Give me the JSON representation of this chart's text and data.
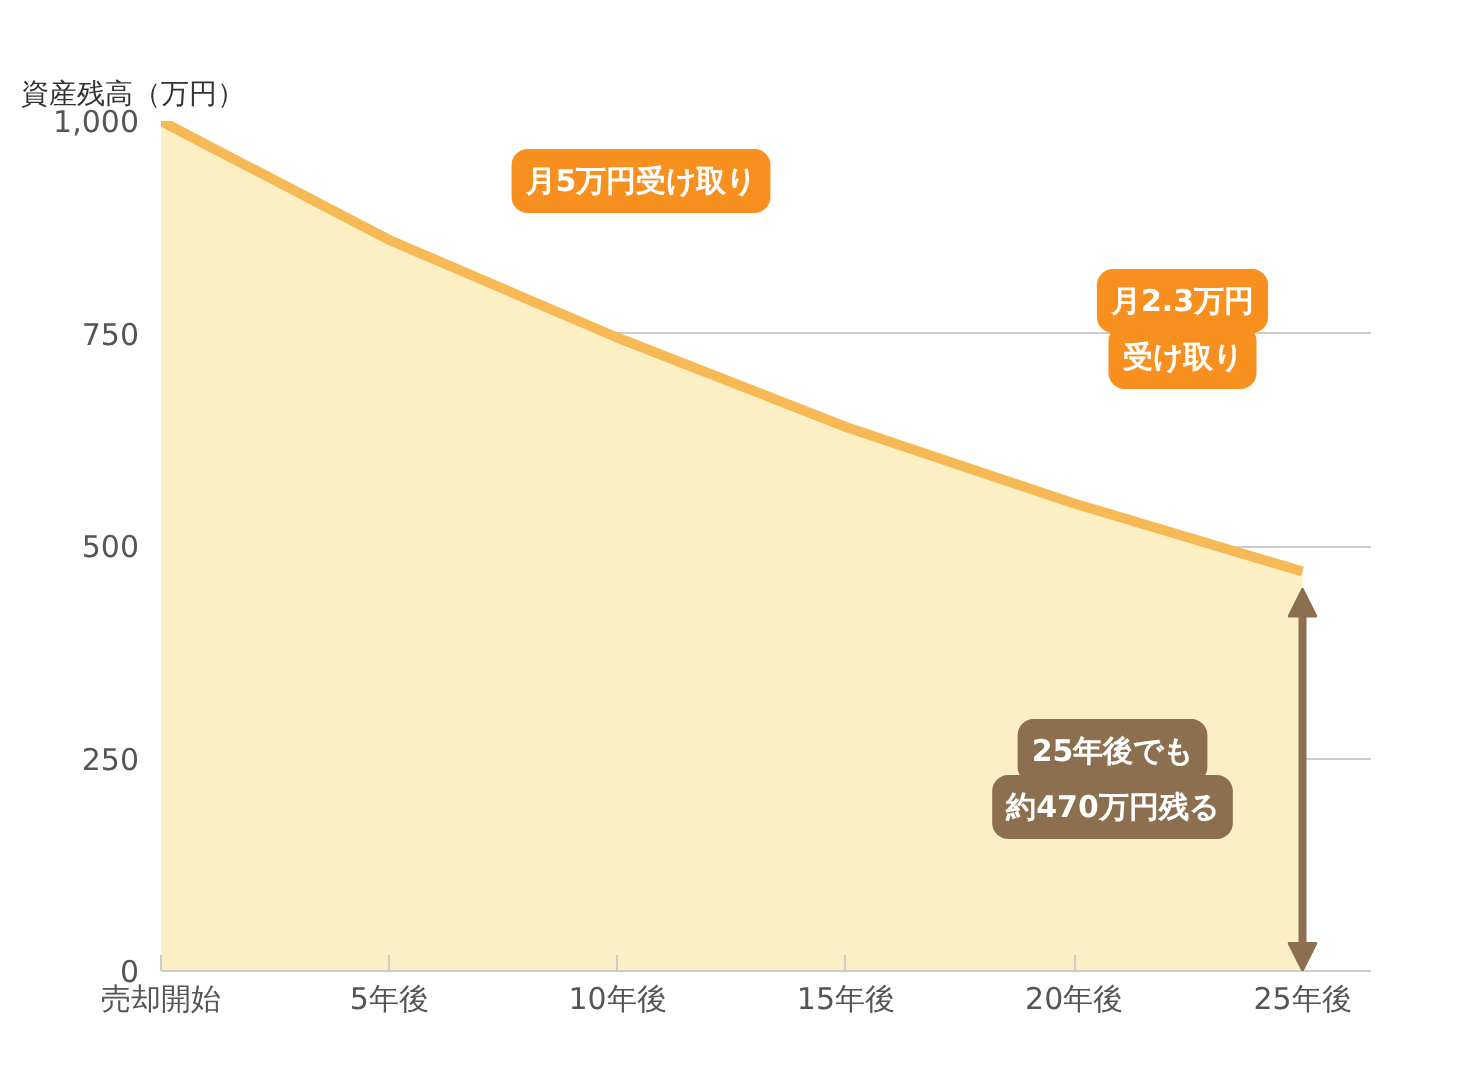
{
  "chart_data": {
    "type": "area",
    "ylabel": "資産残高（万円）",
    "categories": [
      "売却開始",
      "5年後",
      "10年後",
      "15年後",
      "20年後",
      "25年後"
    ],
    "series": [
      {
        "color": "#f7b955",
        "values": [
          1000,
          860,
          745,
          640,
          550,
          470
        ]
      }
    ],
    "ylim": [
      0,
      1000
    ],
    "yticks": [
      0,
      250,
      500,
      750,
      {
        "value": 1000,
        "label": "1,000"
      }
    ],
    "grid": "y",
    "line_style": "solid",
    "annotations": [
      "月5万円受け取り",
      "月2.3万円",
      "受け取り",
      "25年後でも",
      "約470万円残る"
    ]
  }
}
